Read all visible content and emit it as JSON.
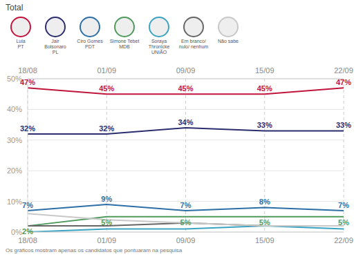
{
  "chart_data": {
    "type": "line",
    "title": "Total",
    "footnote": "Os gráficos mostram apenas os candidatos que pontuaram na pesquisa",
    "categories": [
      "18/08",
      "01/09",
      "09/09",
      "15/09",
      "22/09"
    ],
    "ylim": [
      0,
      50
    ],
    "yticks": [
      {
        "value": 0,
        "label": "0%"
      },
      {
        "value": 10,
        "label": "10%"
      },
      {
        "value": 20,
        "label": "20%"
      },
      {
        "value": 30,
        "label": "30%"
      },
      {
        "value": 40,
        "label": "40%"
      },
      {
        "value": 50,
        "label": "50%"
      }
    ],
    "grid": true,
    "marker": "none",
    "series": [
      {
        "name": "Lula",
        "party": "PT",
        "color": "#c0143c",
        "values": [
          47,
          45,
          45,
          45,
          47
        ],
        "data_labels": true,
        "value_labels": [
          "47%",
          "45%",
          "45%",
          "45%",
          "47%"
        ]
      },
      {
        "name": "Jair Bolsonaro",
        "party": "PL",
        "color": "#2b2d6e",
        "values": [
          32,
          32,
          34,
          33,
          33
        ],
        "data_labels": true,
        "value_labels": [
          "32%",
          "32%",
          "34%",
          "33%",
          "33%"
        ]
      },
      {
        "name": "Ciro Gomes",
        "party": "PDT",
        "color": "#2c6fa6",
        "values": [
          7,
          9,
          7,
          8,
          7
        ],
        "data_labels": true,
        "value_labels": [
          "7%",
          "9%",
          "7%",
          "8%",
          "7%"
        ]
      },
      {
        "name": "Simone Tebet",
        "party": "MDB",
        "color": "#4f9a5c",
        "values": [
          2,
          5,
          5,
          5,
          5
        ],
        "data_labels": true,
        "value_labels": [
          "2%",
          "5%",
          "5%",
          "5%",
          "5%"
        ]
      },
      {
        "name": "Soraya Thronicke",
        "party": "UNIÃO",
        "color": "#3aa3c2",
        "values": [
          0,
          1,
          1,
          2,
          1
        ],
        "data_labels": false
      },
      {
        "name": "Em branco/ nulo/ nenhum",
        "color": "#666666",
        "values": [
          2,
          2,
          3,
          2,
          2
        ],
        "data_labels": false
      },
      {
        "name": "Não sabe",
        "color": "#c8c8c8",
        "values": [
          6,
          4,
          3,
          2,
          2
        ],
        "data_labels": false
      }
    ]
  }
}
